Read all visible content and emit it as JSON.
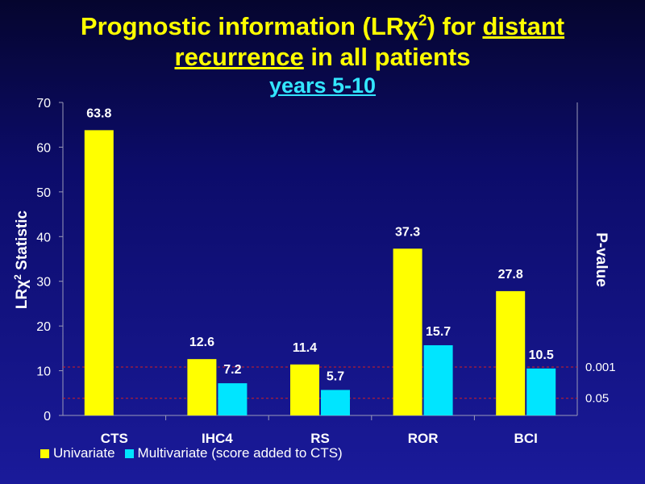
{
  "title": {
    "part1": "Prognostic information (LR",
    "chi": "χ",
    "sup": "2",
    "part2": ") for ",
    "distant": "distant",
    "recurrence": "recurrence",
    "part3": " in all patients"
  },
  "subtitle": "years 5-10",
  "colors": {
    "univariate": "#ffff00",
    "multivariate": "#00e5ff",
    "threshold": "#d62020",
    "background": "#0c0c6a"
  },
  "chart_data": {
    "type": "bar",
    "categories": [
      "CTS",
      "IHC4",
      "RS",
      "ROR",
      "BCI"
    ],
    "series": [
      {
        "name": "Univariate",
        "values": [
          63.8,
          12.6,
          11.4,
          37.3,
          27.8
        ]
      },
      {
        "name": "Multivariate (score added to CTS)",
        "values": [
          null,
          7.2,
          5.7,
          15.7,
          10.5
        ]
      }
    ],
    "value_labels": {
      "Univariate": [
        "63.8",
        "12.6",
        "11.4",
        "37.3",
        "27.8"
      ],
      "Multivariate (score added to CTS)": [
        "",
        "7.2",
        "5.7",
        "15.7",
        "10.5"
      ]
    },
    "ylabel_parts": [
      "LR",
      "χ",
      "2",
      " Statistic"
    ],
    "y2label": "P-value",
    "ylim": [
      0,
      70
    ],
    "yticks": [
      0,
      10,
      20,
      30,
      40,
      50,
      60,
      70
    ],
    "thresholds": [
      {
        "label": "0.001",
        "value": 10.83
      },
      {
        "label": "0.05",
        "value": 3.84
      }
    ],
    "legend_position": "bottom-left",
    "grid": false
  }
}
